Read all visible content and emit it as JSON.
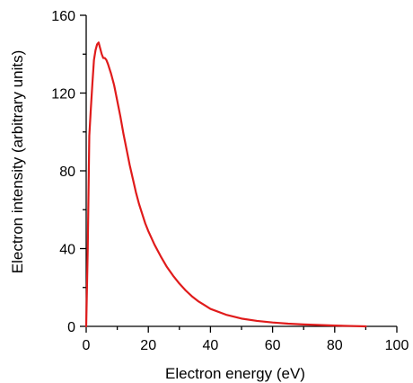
{
  "chart_data": {
    "type": "line",
    "title": "",
    "xlabel": "Electron energy (eV)",
    "ylabel": "Electron intensity (arbitrary units)",
    "xlim": [
      0,
      100
    ],
    "ylim": [
      0,
      160
    ],
    "x_ticks": [
      "0",
      "20",
      "40",
      "60",
      "80",
      "100"
    ],
    "y_ticks": [
      "0",
      "40",
      "80",
      "120",
      "160"
    ],
    "grid": false,
    "legend": "none",
    "series": [
      {
        "color": "#e01b1b",
        "x": [
          0,
          0.5,
          1,
          1.5,
          2,
          2.5,
          3,
          3.5,
          4,
          4.5,
          5,
          5.5,
          6,
          6.5,
          7,
          8,
          9,
          10,
          11,
          12,
          13,
          14,
          15,
          16,
          17,
          18,
          19,
          20,
          22,
          24,
          26,
          28,
          30,
          32,
          34,
          36,
          38,
          40,
          45,
          50,
          55,
          60,
          65,
          70,
          75,
          80,
          85,
          90
        ],
        "y": [
          0,
          40,
          98,
          112,
          125,
          137,
          142,
          145,
          146,
          143,
          140,
          138,
          138,
          137,
          135,
          130,
          124,
          116,
          108,
          99,
          91,
          83,
          76,
          69,
          63,
          58,
          53,
          49,
          42,
          36,
          30.5,
          26,
          22,
          18.5,
          15.5,
          13,
          11,
          9,
          6,
          4,
          2.8,
          2,
          1.4,
          1,
          0.7,
          0.4,
          0.2,
          0
        ]
      }
    ]
  }
}
